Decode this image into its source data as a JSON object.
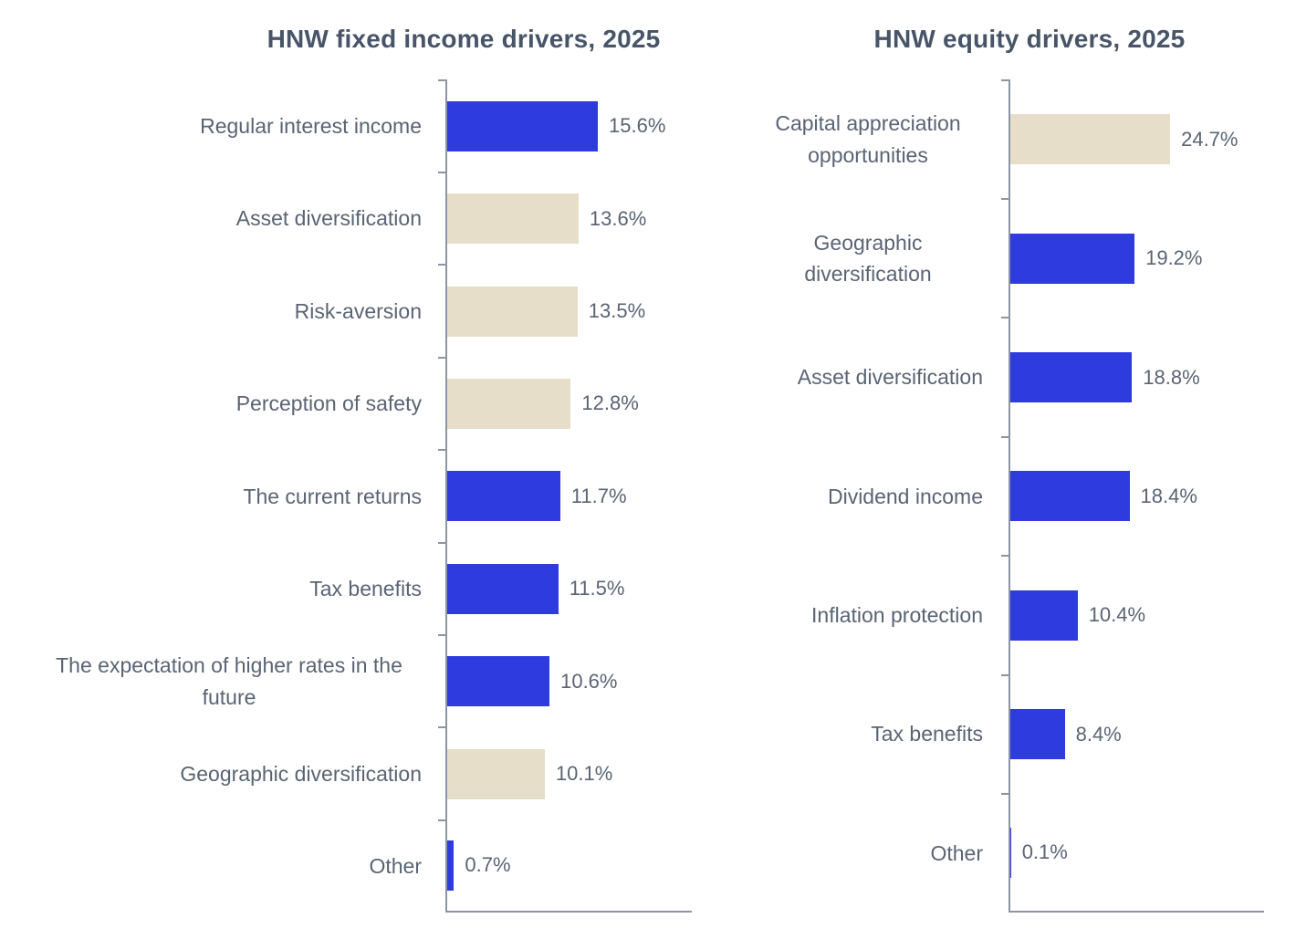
{
  "palette": {
    "blue": "#2E3BDF",
    "beige": "#E7DEC9",
    "axis": "#8C95A3",
    "text": "#5A6474",
    "title": "#485468"
  },
  "chart_data": [
    {
      "type": "bar",
      "orientation": "horizontal",
      "title": "HNW fixed income drivers, 2025",
      "categories": [
        "Regular interest income",
        "Asset diversification",
        "Risk-aversion",
        "Perception of safety",
        "The current returns",
        "Tax benefits",
        "The expectation of higher rates in the future",
        "Geographic diversification",
        "Other"
      ],
      "values": [
        15.6,
        13.6,
        13.5,
        12.8,
        11.7,
        11.5,
        10.6,
        10.1,
        0.7
      ],
      "labels": [
        "15.6%",
        "13.6%",
        "13.5%",
        "12.8%",
        "11.7%",
        "11.5%",
        "10.6%",
        "10.1%",
        "0.7%"
      ],
      "bar_colors": [
        "blue",
        "beige",
        "beige",
        "beige",
        "blue",
        "blue",
        "blue",
        "beige",
        "blue"
      ],
      "xlabel": "",
      "ylabel": "",
      "xlim": [
        0,
        16
      ],
      "grid": false,
      "legend": "none",
      "value_labels_position": "right-of-bar"
    },
    {
      "type": "bar",
      "orientation": "horizontal",
      "title": "HNW equity drivers, 2025",
      "categories": [
        "Capital appreciation opportunities",
        "Geographic diversification",
        "Asset diversification",
        "Dividend income",
        "Inflation protection",
        "Tax benefits",
        "Other"
      ],
      "values": [
        24.7,
        19.2,
        18.8,
        18.4,
        10.4,
        8.4,
        0.1
      ],
      "labels": [
        "24.7%",
        "19.2%",
        "18.8%",
        "18.4%",
        "10.4%",
        "8.4%",
        "0.1%"
      ],
      "bar_colors": [
        "beige",
        "blue",
        "blue",
        "blue",
        "blue",
        "blue",
        "blue"
      ],
      "xlabel": "",
      "ylabel": "",
      "xlim": [
        0,
        26
      ],
      "grid": false,
      "legend": "none",
      "value_labels_position": "right-of-bar"
    }
  ]
}
